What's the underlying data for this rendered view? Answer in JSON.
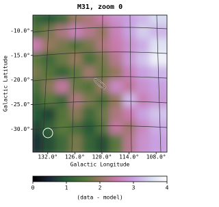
{
  "chart_data": {
    "type": "image",
    "title": "M31, zoom 0",
    "xlabel": "Galactic Longitude",
    "ylabel": "Galactic Latitude",
    "xlim": [
      135.3,
      105.6
    ],
    "ylim": [
      -34.7,
      -6.8
    ],
    "xticks": [
      {
        "value": 132,
        "label": "132.0°"
      },
      {
        "value": 126,
        "label": "126.0°"
      },
      {
        "value": 120,
        "label": "120.0°"
      },
      {
        "value": 114,
        "label": "114.0°"
      },
      {
        "value": 108,
        "label": "108.0°"
      }
    ],
    "yticks": [
      {
        "value": -10,
        "label": "-10.0°"
      },
      {
        "value": -15,
        "label": "-15.0°"
      },
      {
        "value": -20,
        "label": "-20.0°"
      },
      {
        "value": -25,
        "label": "-25.0°"
      },
      {
        "value": -30,
        "label": "-30.0°"
      }
    ],
    "image": [
      [
        1.2,
        1.0,
        1.3,
        2.0,
        2.2,
        2.5,
        2.8,
        3.0,
        3.2,
        3.5
      ],
      [
        1.5,
        1.8,
        2.2,
        2.6,
        2.3,
        2.0,
        2.6,
        3.0,
        3.4,
        3.2
      ],
      [
        2.5,
        2.0,
        1.8,
        1.5,
        1.8,
        2.2,
        2.5,
        2.8,
        3.1,
        3.6
      ],
      [
        1.6,
        1.3,
        1.7,
        2.0,
        1.4,
        1.8,
        2.3,
        2.9,
        3.3,
        3.8
      ],
      [
        1.8,
        1.5,
        1.2,
        1.6,
        2.1,
        1.7,
        2.0,
        2.6,
        3.0,
        3.2
      ],
      [
        1.4,
        1.9,
        2.4,
        1.7,
        1.5,
        2.0,
        2.7,
        2.4,
        2.8,
        3.0
      ],
      [
        1.2,
        1.6,
        1.3,
        2.2,
        1.8,
        1.4,
        2.0,
        3.2,
        2.6,
        2.9
      ],
      [
        1.0,
        0.8,
        1.5,
        1.9,
        1.3,
        1.7,
        2.2,
        2.5,
        3.0,
        3.3
      ],
      [
        0.8,
        1.1,
        1.6,
        1.4,
        1.0,
        1.5,
        2.4,
        2.1,
        2.7,
        3.1
      ],
      [
        0.6,
        0.9,
        1.3,
        1.8,
        1.2,
        0.9,
        1.6,
        2.3,
        2.8,
        3.0
      ]
    ],
    "colorbar": {
      "label": "(data - model)",
      "lim": [
        0,
        4
      ],
      "ticks": [
        0,
        1,
        2,
        3,
        4
      ]
    }
  }
}
